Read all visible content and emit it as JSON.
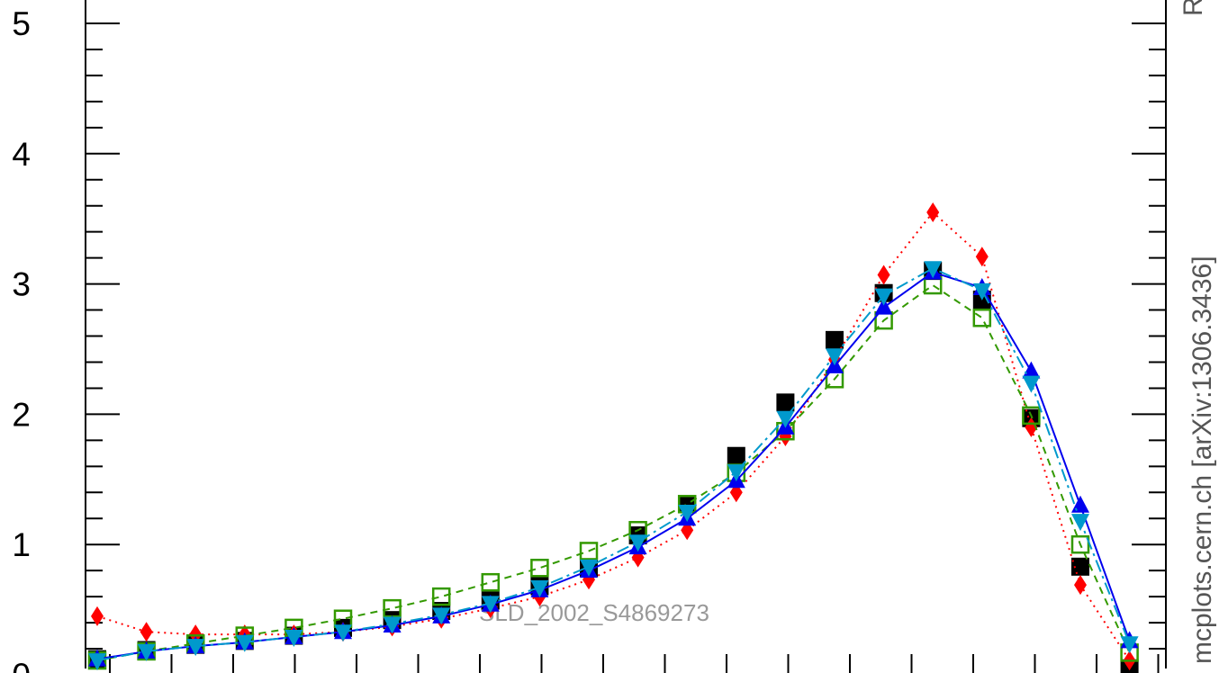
{
  "chart_data": {
    "type": "scatter",
    "title": "",
    "xlabel": "",
    "ylabel": "",
    "ylim": [
      0,
      5.25
    ],
    "y_ticks": [
      "0",
      "1",
      "2",
      "3",
      "4",
      "5"
    ],
    "grid": false,
    "annotation": "SLD_2002_S4869273",
    "side_label": "mcplots.cern.ch [arXiv:1306.3436]",
    "corner_label": "R",
    "x": [
      1,
      2,
      3,
      4,
      5,
      6,
      7,
      8,
      9,
      10,
      11,
      12,
      13,
      14,
      15,
      16,
      17,
      18,
      19,
      20,
      21,
      22
    ],
    "series": [
      {
        "marker": "square-filled",
        "color": "#000000",
        "line": "none",
        "values": [
          0.12,
          0.19,
          0.23,
          0.26,
          0.3,
          0.36,
          0.42,
          0.49,
          0.57,
          0.68,
          0.82,
          1.07,
          1.31,
          1.68,
          2.09,
          2.57,
          2.93,
          3.1,
          2.88,
          1.97,
          0.83,
          0.05
        ]
      },
      {
        "marker": "diamond-filled",
        "color": "#ff0000",
        "line": "dotted",
        "values": [
          0.45,
          0.33,
          0.31,
          0.31,
          0.31,
          0.33,
          0.37,
          0.43,
          0.51,
          0.6,
          0.73,
          0.9,
          1.11,
          1.4,
          1.83,
          2.42,
          3.07,
          3.55,
          3.21,
          1.9,
          0.69,
          0.11
        ]
      },
      {
        "marker": "square-open",
        "color": "#339900",
        "line": "dashed",
        "values": [
          0.11,
          0.18,
          0.24,
          0.3,
          0.36,
          0.43,
          0.51,
          0.6,
          0.71,
          0.82,
          0.95,
          1.11,
          1.31,
          1.55,
          1.87,
          2.27,
          2.72,
          2.99,
          2.74,
          1.99,
          1.0,
          0.17
        ]
      },
      {
        "marker": "triangle-up-filled",
        "color": "#0000ee",
        "line": "solid",
        "values": [
          0.12,
          0.18,
          0.22,
          0.25,
          0.29,
          0.33,
          0.38,
          0.45,
          0.54,
          0.65,
          0.8,
          0.98,
          1.2,
          1.49,
          1.9,
          2.37,
          2.82,
          3.09,
          2.97,
          2.33,
          1.3,
          0.26
        ]
      },
      {
        "marker": "triangle-down-filled",
        "color": "#0099cc",
        "line": "dashdot",
        "values": [
          0.11,
          0.18,
          0.22,
          0.25,
          0.29,
          0.33,
          0.39,
          0.46,
          0.55,
          0.67,
          0.83,
          1.02,
          1.25,
          1.56,
          1.97,
          2.45,
          2.91,
          3.12,
          2.95,
          2.24,
          1.18,
          0.24
        ]
      }
    ]
  }
}
